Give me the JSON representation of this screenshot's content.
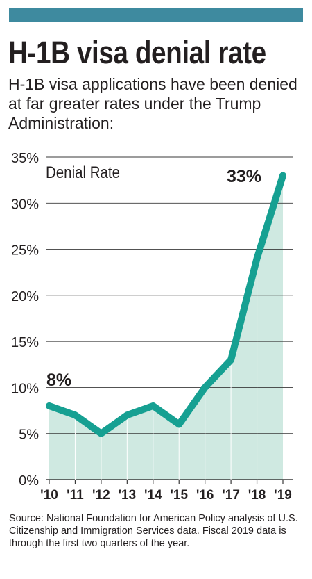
{
  "title": "H-1B visa denial rate",
  "subtitle": "H-1B visa applications have been denied at far greater rates under the Trump Administration:",
  "source": "Source: National Foundation for American Policy analysis of U.S. Citizenship and Immigration Services data. Fiscal 2019 data is through the first two quarters of the year.",
  "colors": {
    "bar": "#3e8a9f",
    "line": "#16a092",
    "fill": "#cfe9e1",
    "grid": "#3a3a3a",
    "text": "#231f20"
  },
  "chart_data": {
    "type": "area",
    "series_label": "Denial Rate",
    "categories": [
      "'10",
      "'11",
      "'12",
      "'13",
      "'14",
      "'15",
      "'16",
      "'17",
      "'18",
      "'19"
    ],
    "values": [
      8,
      7,
      5,
      7,
      8,
      6,
      10,
      13,
      24,
      33
    ],
    "ylim": [
      0,
      35
    ],
    "y_ticks": [
      "0%",
      "5%",
      "10%",
      "15%",
      "20%",
      "25%",
      "30%",
      "35%"
    ],
    "annotations": [
      {
        "label": "8%",
        "category": "'10"
      },
      {
        "label": "33%",
        "category": "'19"
      }
    ],
    "grid": true
  }
}
